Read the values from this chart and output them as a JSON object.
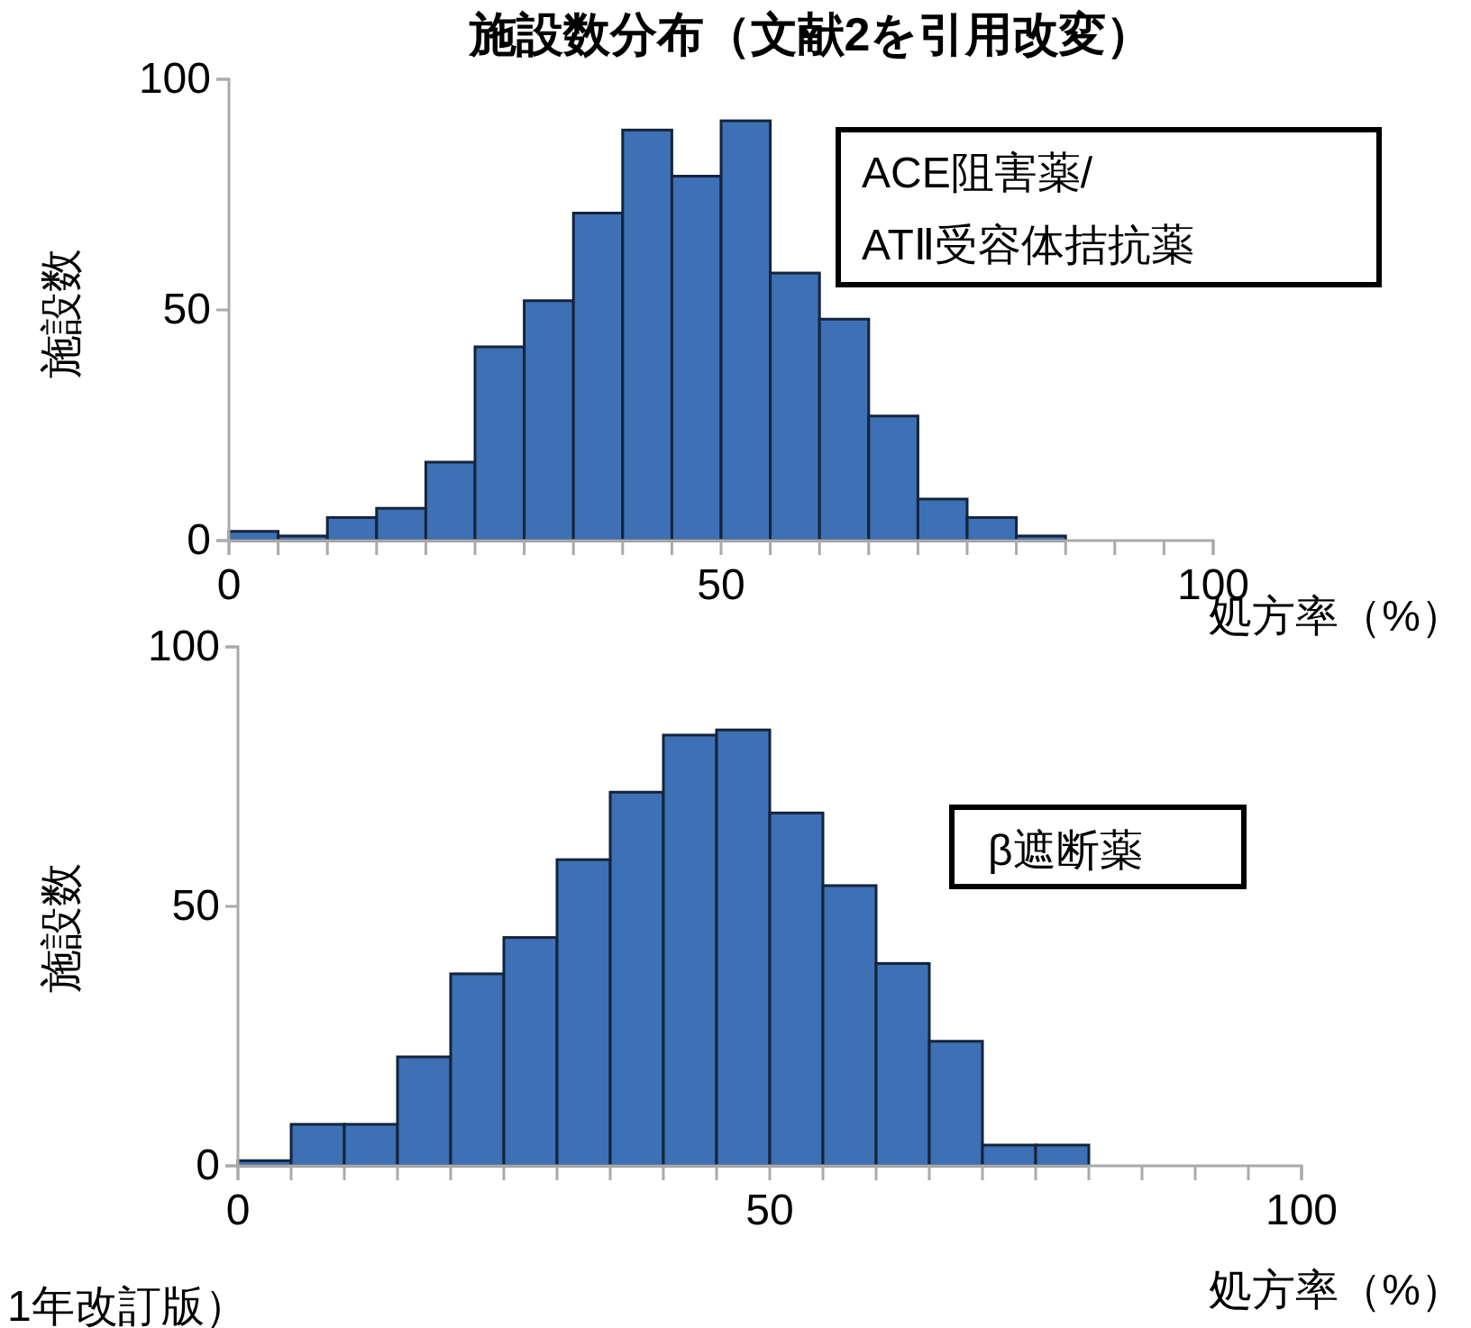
{
  "chart_data": [
    {
      "type": "histogram",
      "title": "施設数分布（文献2を引用改変）",
      "xlabel": "処方率（%）",
      "ylabel": "施設数",
      "color": "#3d70b5",
      "bins": [
        0,
        5,
        10,
        15,
        20,
        25,
        30,
        35,
        40,
        45,
        50,
        55,
        60,
        65,
        70,
        75,
        80,
        85
      ],
      "values": [
        2,
        1,
        5,
        7,
        17,
        42,
        52,
        71,
        89,
        79,
        91,
        58,
        48,
        27,
        9,
        5,
        1
      ],
      "xlim": [
        0,
        100
      ],
      "ylim": [
        0,
        100
      ],
      "yticks": [
        0,
        50,
        100
      ],
      "xticks": [
        0,
        {
          "value": 5,
          "label": null
        },
        {
          "value": 10,
          "label": null
        },
        {
          "value": 15,
          "label": null
        },
        {
          "value": 20,
          "label": null
        },
        {
          "value": 25,
          "label": null
        },
        {
          "value": 30,
          "label": null
        },
        {
          "value": 35,
          "label": null
        },
        {
          "value": 40,
          "label": null
        },
        {
          "value": 45,
          "label": null
        },
        50,
        {
          "value": 55,
          "label": null
        },
        {
          "value": 60,
          "label": null
        },
        {
          "value": 65,
          "label": null
        },
        {
          "value": 70,
          "label": null
        },
        {
          "value": 75,
          "label": null
        },
        {
          "value": 80,
          "label": null
        },
        {
          "value": 85,
          "label": null
        },
        {
          "value": 90,
          "label": null
        },
        {
          "value": 95,
          "label": null
        },
        100
      ],
      "annotations": [
        "ACE阻害薬/\nATⅡ受容体拮抗薬"
      ]
    },
    {
      "type": "histogram",
      "xlabel": "処方率（%）",
      "ylabel": "施設数",
      "color": "#3d70b5",
      "bins": [
        0,
        5,
        10,
        15,
        20,
        25,
        30,
        35,
        40,
        45,
        50,
        55,
        60,
        65,
        70,
        75,
        80
      ],
      "values": [
        1,
        8,
        8,
        21,
        37,
        44,
        59,
        72,
        83,
        84,
        68,
        54,
        39,
        24,
        4,
        4
      ],
      "xlim": [
        0,
        100
      ],
      "ylim": [
        0,
        100
      ],
      "yticks": [
        0,
        50,
        100
      ],
      "xticks": [
        0,
        {
          "value": 5,
          "label": null
        },
        {
          "value": 10,
          "label": null
        },
        {
          "value": 15,
          "label": null
        },
        {
          "value": 20,
          "label": null
        },
        {
          "value": 25,
          "label": null
        },
        {
          "value": 30,
          "label": null
        },
        {
          "value": 35,
          "label": null
        },
        {
          "value": 40,
          "label": null
        },
        {
          "value": 45,
          "label": null
        },
        50,
        {
          "value": 55,
          "label": null
        },
        {
          "value": 60,
          "label": null
        },
        {
          "value": 65,
          "label": null
        },
        {
          "value": 70,
          "label": null
        },
        {
          "value": 75,
          "label": null
        },
        {
          "value": 80,
          "label": null
        },
        {
          "value": 85,
          "label": null
        },
        {
          "value": 90,
          "label": null
        },
        {
          "value": 95,
          "label": null
        },
        100
      ],
      "annotations": [
        "β遮断薬",
        "1年改訂版）"
      ]
    }
  ]
}
